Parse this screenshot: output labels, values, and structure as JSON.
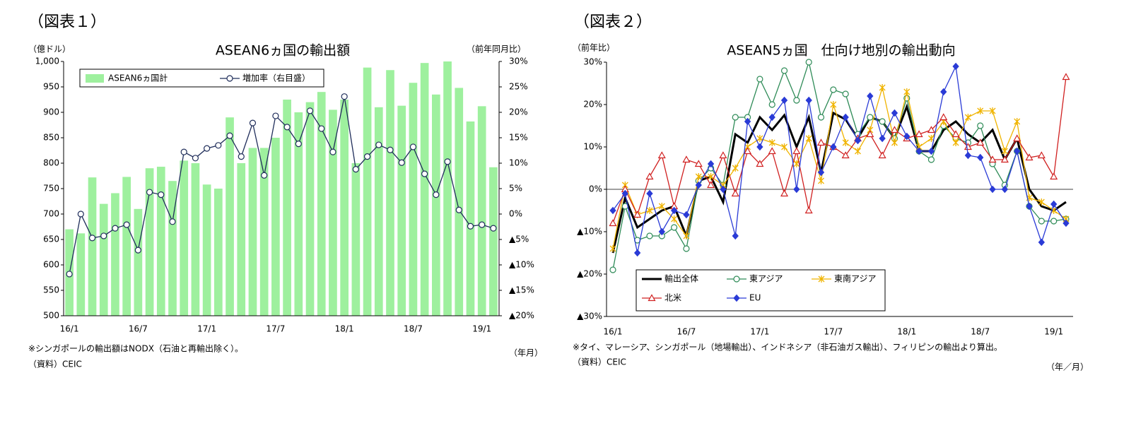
{
  "chart_data": [
    {
      "type": "combo",
      "figure_label": "（図表１）",
      "title": "ASEAN6ヵ国の輸出額",
      "y_unit": "（億ドル）",
      "y2_unit": "（前年同月比）",
      "x_unit": "（年月）",
      "notes": [
        "※シンガポールの輸出額はNODX（石油と再輸出除く）。",
        "（資料）CEIC"
      ],
      "categories": [
        "16/1",
        null,
        null,
        null,
        null,
        null,
        "16/7",
        null,
        null,
        null,
        null,
        null,
        "17/1",
        null,
        null,
        null,
        null,
        null,
        "17/7",
        null,
        null,
        null,
        null,
        null,
        "18/1",
        null,
        null,
        null,
        null,
        null,
        "18/7",
        null,
        null,
        null,
        null,
        null,
        "19/1",
        null
      ],
      "series": [
        {
          "name": "ASEAN6ヵ国計",
          "color": "#9ef09e",
          "type": "bar",
          "values": [
            670,
            662,
            772,
            720,
            741,
            773,
            710,
            790,
            793,
            765,
            805,
            800,
            758,
            750,
            890,
            800,
            830,
            830,
            850,
            925,
            900,
            920,
            940,
            905,
            925,
            800,
            988,
            910,
            983,
            913,
            958,
            997,
            935,
            1000,
            948,
            882,
            912,
            792
          ]
        },
        {
          "name": "増加率（右目盛）",
          "color": "#1f2d5a",
          "type": "line",
          "axis": "y2",
          "marker": "circle",
          "values": [
            -11.8,
            0,
            -4.7,
            -4.3,
            -2.8,
            -2.1,
            -7.1,
            4.3,
            3.8,
            -1.5,
            12.2,
            11,
            12.9,
            13.5,
            15.4,
            11.3,
            17.9,
            7.6,
            19.3,
            17.1,
            13.8,
            20.3,
            16.8,
            12.2,
            23.1,
            8.8,
            11.3,
            13.6,
            12.6,
            10.1,
            13.2,
            7.9,
            3.8,
            10.3,
            0.8,
            -2.4,
            -2.1,
            -2.8
          ]
        }
      ],
      "ylim": [
        500,
        1000
      ],
      "yticks": [
        500,
        550,
        600,
        650,
        700,
        750,
        800,
        850,
        900,
        950,
        {
          "value": 1000,
          "label": "1,000"
        }
      ],
      "y2lim": [
        -20,
        30
      ],
      "y2ticks": [
        {
          "value": -20,
          "label": "▲20%"
        },
        {
          "value": -15,
          "label": "▲15%"
        },
        {
          "value": -10,
          "label": "▲10%"
        },
        {
          "value": -5,
          "label": "▲5%"
        },
        {
          "value": 0,
          "label": "0%"
        },
        {
          "value": 5,
          "label": "5%"
        },
        {
          "value": 10,
          "label": "10%"
        },
        {
          "value": 15,
          "label": "15%"
        },
        {
          "value": 20,
          "label": "20%"
        },
        {
          "value": 25,
          "label": "25%"
        },
        {
          "value": 30,
          "label": "30%"
        }
      ],
      "legend": "top-left",
      "grid": false
    },
    {
      "type": "line",
      "figure_label": "（図表２）",
      "title": "ASEAN5ヵ国　仕向け地別の輸出動向",
      "y_unit": "（前年比）",
      "x_unit": "（年／月）",
      "notes": [
        "※タイ、マレーシア、シンガポール（地場輸出）、インドネシア（非石油ガス輸出）、フィリピンの輸出より算出。",
        "（資料）CEIC"
      ],
      "categories": [
        "16/1",
        null,
        null,
        null,
        null,
        null,
        "16/7",
        null,
        null,
        null,
        null,
        null,
        "17/1",
        null,
        null,
        null,
        null,
        null,
        "17/7",
        null,
        null,
        null,
        null,
        null,
        "18/1",
        null,
        null,
        null,
        null,
        null,
        "18/7",
        null,
        null,
        null,
        null,
        null,
        "19/1",
        null
      ],
      "series": [
        {
          "name": "輸出全体",
          "color": "#000000",
          "marker": "none",
          "values": [
            -15,
            -2,
            -9,
            -7,
            -5,
            -4,
            -11,
            2,
            3,
            -3,
            13,
            11,
            17,
            14,
            17.5,
            10,
            17,
            4,
            18,
            16.5,
            12,
            17,
            16,
            12,
            19.5,
            9,
            9,
            14,
            16,
            13,
            11,
            14,
            7,
            12,
            0,
            -4,
            -5,
            -3
          ]
        },
        {
          "name": "東アジア",
          "color": "#2e8b57",
          "marker": "circle",
          "values": [
            -19,
            -4,
            -12,
            -11,
            -11,
            -9,
            -14,
            2,
            5,
            1,
            17,
            17,
            26,
            20,
            28,
            21,
            30,
            17,
            23.5,
            22.5,
            13,
            17,
            16,
            12,
            21.5,
            9,
            7,
            15,
            12,
            11,
            15,
            6,
            1,
            9,
            -4,
            -7.5,
            -7.5,
            -7
          ]
        },
        {
          "name": "東南アジア",
          "color": "#f0b400",
          "marker": "star",
          "values": [
            -14,
            1,
            -6,
            -5,
            -4,
            -7,
            -11,
            3,
            3,
            1,
            5,
            10,
            12,
            11,
            10,
            6,
            12,
            2,
            20,
            11,
            9,
            14,
            24,
            11,
            23,
            10,
            12,
            16,
            11,
            17,
            18.5,
            18.5,
            9,
            16,
            -2,
            -3,
            -5,
            -7
          ]
        },
        {
          "name": "北米",
          "color": "#d02020",
          "marker": "triangle",
          "values": [
            -8,
            0,
            -6,
            3,
            8,
            -4,
            7,
            6,
            1,
            8,
            -1,
            9,
            6,
            9,
            -1,
            9,
            -5,
            11,
            10,
            8,
            12,
            13,
            8,
            14,
            12,
            13,
            14,
            17,
            13,
            10,
            11,
            7,
            7,
            12,
            7.5,
            8,
            3,
            26.5
          ]
        },
        {
          "name": "EU",
          "color": "#2a3bd6",
          "marker": "diamond",
          "values": [
            -5,
            -1,
            -15,
            -1,
            -10,
            -5,
            -6,
            1,
            6,
            0,
            -11,
            16,
            10,
            17,
            21,
            0,
            21,
            4,
            10,
            17,
            11.5,
            22,
            12,
            18,
            12.5,
            9,
            9,
            23,
            29,
            8,
            7.5,
            0,
            0,
            9,
            -4,
            -12.5,
            -3.5,
            -8
          ]
        }
      ],
      "ylim": [
        -30,
        30
      ],
      "yticks": [
        {
          "value": -30,
          "label": "▲30%"
        },
        {
          "value": -20,
          "label": "▲20%"
        },
        {
          "value": -10,
          "label": "▲10%"
        },
        {
          "value": 0,
          "label": "0%"
        },
        {
          "value": 10,
          "label": "10%"
        },
        {
          "value": 20,
          "label": "20%"
        },
        {
          "value": 30,
          "label": "30%"
        }
      ],
      "legend": "bottom-left",
      "grid": false
    }
  ]
}
